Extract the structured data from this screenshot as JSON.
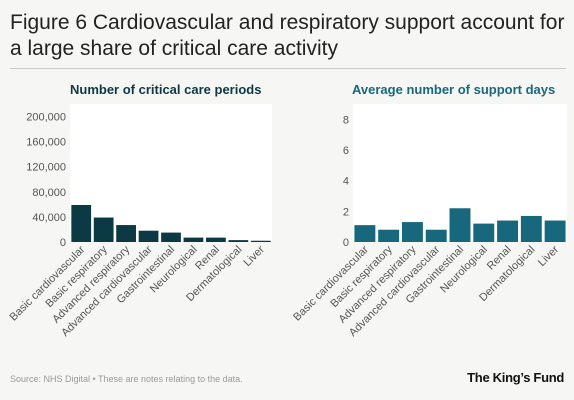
{
  "header": {
    "title": "Figure 6 Cardiovascular and respiratory support account for a large share of critical care activity"
  },
  "footer": {
    "source": "Source: NHS Digital • These are notes relating to the data.",
    "logo": "The King’s Fund"
  },
  "colors": {
    "chart1_bar": "#0b3a45",
    "chart2_bar": "#17687c",
    "plot_bg": "#ffffff",
    "grid": "#e6e6e6"
  },
  "chart_data": [
    {
      "type": "bar",
      "title": "Number of critical care periods",
      "categories": [
        "Basic cardiovascular",
        "Basic respiratory",
        "Advanced respiratory",
        "Advanced cardiovascular",
        "Gastrointestinal",
        "Neurological",
        "Renal",
        "Dermatological",
        "Liver"
      ],
      "values": [
        59000,
        39000,
        27000,
        18000,
        15000,
        7000,
        7000,
        3000,
        2000
      ],
      "ylim": [
        0,
        220000
      ],
      "yticks": [
        0,
        40000,
        80000,
        120000,
        160000,
        200000
      ],
      "ytick_labels": [
        "0",
        "40,000",
        "80,000",
        "120,000",
        "160,000",
        "200,000"
      ],
      "grid": false
    },
    {
      "type": "bar",
      "title": "Average number of support days",
      "categories": [
        "Basic cardiovascular",
        "Basic respiratory",
        "Advanced respiratory",
        "Advanced cardiovascular",
        "Gastrointestinal",
        "Neurological",
        "Renal",
        "Dermatological",
        "Liver"
      ],
      "values": [
        1.1,
        0.8,
        1.3,
        0.8,
        2.2,
        1.2,
        1.4,
        1.7,
        1.4
      ],
      "ylim": [
        0,
        9
      ],
      "yticks": [
        0,
        2,
        4,
        6,
        8
      ],
      "ytick_labels": [
        "0",
        "2",
        "4",
        "6",
        "8"
      ],
      "grid": false
    }
  ]
}
